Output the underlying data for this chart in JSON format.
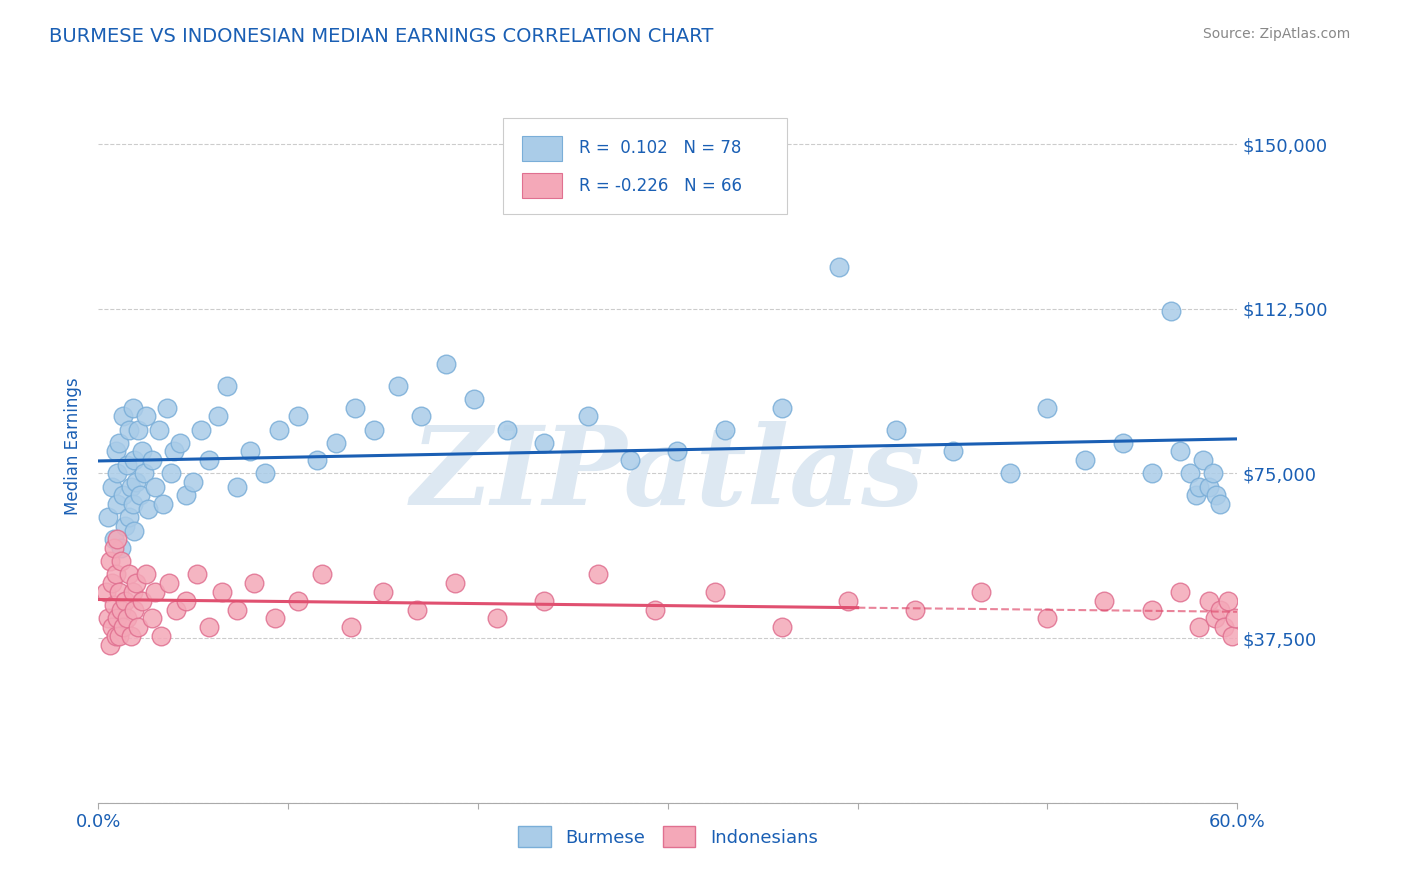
{
  "title": "BURMESE VS INDONESIAN MEDIAN EARNINGS CORRELATION CHART",
  "source_text": "Source: ZipAtlas.com",
  "ylabel": "Median Earnings",
  "xlim": [
    0.0,
    0.6
  ],
  "ylim": [
    0,
    162500
  ],
  "xtick_vals": [
    0.0,
    0.1,
    0.2,
    0.3,
    0.4,
    0.5,
    0.6
  ],
  "xtick_labels_show": [
    "0.0%",
    "",
    "",
    "",
    "",
    "",
    "60.0%"
  ],
  "ytick_vals": [
    0,
    37500,
    75000,
    112500,
    150000
  ],
  "ytick_labels": [
    "",
    "$37,500",
    "$75,000",
    "$112,500",
    "$150,000"
  ],
  "grid_color": "#cccccc",
  "background_color": "#ffffff",
  "burmese_color": "#aacce8",
  "burmese_edge_color": "#7aaed8",
  "indonesian_color": "#f4a8b8",
  "indonesian_edge_color": "#e07090",
  "blue_line_color": "#1a5fb4",
  "pink_line_color": "#e05070",
  "watermark_color": "#dde8f2",
  "legend_text_color": "#1a5fb4",
  "title_color": "#1a5fb4",
  "axis_label_color": "#1a5fb4",
  "ytick_color": "#1a5fb4",
  "xtick_color": "#1a5fb4",
  "legend_R_blue": "0.102",
  "legend_N_blue": "78",
  "legend_R_pink": "-0.226",
  "legend_N_pink": "66",
  "burmese_x": [
    0.005,
    0.007,
    0.008,
    0.009,
    0.01,
    0.01,
    0.011,
    0.012,
    0.013,
    0.013,
    0.014,
    0.015,
    0.016,
    0.016,
    0.017,
    0.018,
    0.018,
    0.019,
    0.019,
    0.02,
    0.021,
    0.022,
    0.023,
    0.024,
    0.025,
    0.026,
    0.028,
    0.03,
    0.032,
    0.034,
    0.036,
    0.038,
    0.04,
    0.043,
    0.046,
    0.05,
    0.054,
    0.058,
    0.063,
    0.068,
    0.073,
    0.08,
    0.088,
    0.095,
    0.105,
    0.115,
    0.125,
    0.135,
    0.145,
    0.158,
    0.17,
    0.183,
    0.198,
    0.215,
    0.235,
    0.258,
    0.28,
    0.305,
    0.33,
    0.36,
    0.39,
    0.42,
    0.45,
    0.48,
    0.5,
    0.52,
    0.54,
    0.555,
    0.565,
    0.57,
    0.575,
    0.578,
    0.58,
    0.582,
    0.585,
    0.587,
    0.589,
    0.591
  ],
  "burmese_y": [
    65000,
    72000,
    60000,
    80000,
    68000,
    75000,
    82000,
    58000,
    70000,
    88000,
    63000,
    77000,
    65000,
    85000,
    72000,
    68000,
    90000,
    62000,
    78000,
    73000,
    85000,
    70000,
    80000,
    75000,
    88000,
    67000,
    78000,
    72000,
    85000,
    68000,
    90000,
    75000,
    80000,
    82000,
    70000,
    73000,
    85000,
    78000,
    88000,
    95000,
    72000,
    80000,
    75000,
    85000,
    88000,
    78000,
    82000,
    90000,
    85000,
    95000,
    88000,
    100000,
    92000,
    85000,
    82000,
    88000,
    78000,
    80000,
    85000,
    90000,
    122000,
    85000,
    80000,
    75000,
    90000,
    78000,
    82000,
    75000,
    112000,
    80000,
    75000,
    70000,
    72000,
    78000,
    72000,
    75000,
    70000,
    68000
  ],
  "indonesian_x": [
    0.004,
    0.005,
    0.006,
    0.006,
    0.007,
    0.007,
    0.008,
    0.008,
    0.009,
    0.009,
    0.01,
    0.01,
    0.011,
    0.011,
    0.012,
    0.012,
    0.013,
    0.014,
    0.015,
    0.016,
    0.017,
    0.018,
    0.019,
    0.02,
    0.021,
    0.023,
    0.025,
    0.028,
    0.03,
    0.033,
    0.037,
    0.041,
    0.046,
    0.052,
    0.058,
    0.065,
    0.073,
    0.082,
    0.093,
    0.105,
    0.118,
    0.133,
    0.15,
    0.168,
    0.188,
    0.21,
    0.235,
    0.263,
    0.293,
    0.325,
    0.36,
    0.395,
    0.43,
    0.465,
    0.5,
    0.53,
    0.555,
    0.57,
    0.58,
    0.585,
    0.588,
    0.591,
    0.593,
    0.595,
    0.597,
    0.599
  ],
  "indonesian_y": [
    48000,
    42000,
    55000,
    36000,
    50000,
    40000,
    45000,
    58000,
    38000,
    52000,
    42000,
    60000,
    38000,
    48000,
    44000,
    55000,
    40000,
    46000,
    42000,
    52000,
    38000,
    48000,
    44000,
    50000,
    40000,
    46000,
    52000,
    42000,
    48000,
    38000,
    50000,
    44000,
    46000,
    52000,
    40000,
    48000,
    44000,
    50000,
    42000,
    46000,
    52000,
    40000,
    48000,
    44000,
    50000,
    42000,
    46000,
    52000,
    44000,
    48000,
    40000,
    46000,
    44000,
    48000,
    42000,
    46000,
    44000,
    48000,
    40000,
    46000,
    42000,
    44000,
    40000,
    46000,
    38000,
    42000
  ]
}
